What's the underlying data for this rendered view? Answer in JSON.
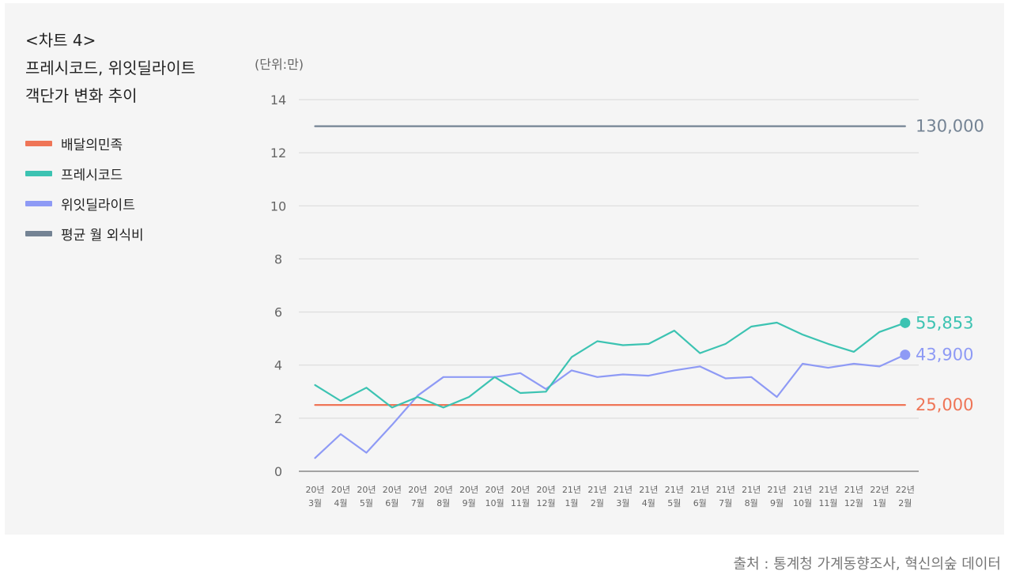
{
  "title_lines": [
    "<차트 4>",
    "프레시코드, 위잇딜라이트",
    "객단가 변화 추이"
  ],
  "unit_label": "(단위:만)",
  "source": "출처 : 통계청 가계동향조사, 혁신의숲 데이터",
  "colors": {
    "baemin": "#ef7557",
    "freshcode": "#3cc3b2",
    "weeat": "#8e9af5",
    "avg": "#748394",
    "grid": "#d8d8d8",
    "axis": "#888888"
  },
  "chart_data": {
    "type": "line",
    "ylim": [
      0,
      14
    ],
    "yticks": [
      0,
      2,
      4,
      6,
      8,
      10,
      12,
      14
    ],
    "grid": true,
    "legend_position": "left",
    "categories": [
      [
        "20년",
        "3월"
      ],
      [
        "20년",
        "4월"
      ],
      [
        "20년",
        "5월"
      ],
      [
        "20년",
        "6월"
      ],
      [
        "20년",
        "7월"
      ],
      [
        "20년",
        "8월"
      ],
      [
        "20년",
        "9월"
      ],
      [
        "20년",
        "10월"
      ],
      [
        "20년",
        "11월"
      ],
      [
        "20년",
        "12월"
      ],
      [
        "21년",
        "1월"
      ],
      [
        "21년",
        "2월"
      ],
      [
        "21년",
        "3월"
      ],
      [
        "21년",
        "4월"
      ],
      [
        "21년",
        "5월"
      ],
      [
        "21년",
        "6월"
      ],
      [
        "21년",
        "7월"
      ],
      [
        "21년",
        "8월"
      ],
      [
        "21년",
        "9월"
      ],
      [
        "21년",
        "10월"
      ],
      [
        "21년",
        "11월"
      ],
      [
        "21년",
        "12월"
      ],
      [
        "22년",
        "1월"
      ],
      [
        "22년",
        "2월"
      ]
    ],
    "series": [
      {
        "name": "배달의민족",
        "color_key": "baemin",
        "values": [
          2.5,
          2.5,
          2.5,
          2.5,
          2.5,
          2.5,
          2.5,
          2.5,
          2.5,
          2.5,
          2.5,
          2.5,
          2.5,
          2.5,
          2.5,
          2.5,
          2.5,
          2.5,
          2.5,
          2.5,
          2.5,
          2.5,
          2.5,
          2.5
        ],
        "end_label": "25,000",
        "end_marker": false
      },
      {
        "name": "프레시코드",
        "color_key": "freshcode",
        "values": [
          3.25,
          2.65,
          3.15,
          2.4,
          2.8,
          2.4,
          2.8,
          3.55,
          2.95,
          3.0,
          4.3,
          4.9,
          4.75,
          4.8,
          5.3,
          4.45,
          4.8,
          5.45,
          5.6,
          5.15,
          4.8,
          4.5,
          5.25,
          5.59
        ],
        "end_label": "55,853",
        "end_marker": true
      },
      {
        "name": "위잇딜라이트",
        "color_key": "weeat",
        "values": [
          0.5,
          1.4,
          0.7,
          1.75,
          2.85,
          3.55,
          3.55,
          3.55,
          3.7,
          3.1,
          3.8,
          3.55,
          3.65,
          3.6,
          3.8,
          3.95,
          3.5,
          3.55,
          2.8,
          4.05,
          3.9,
          4.05,
          3.95,
          4.39
        ],
        "end_label": "43,900",
        "end_marker": true
      },
      {
        "name": "평균 월 외식비",
        "color_key": "avg",
        "values": [
          13,
          13,
          13,
          13,
          13,
          13,
          13,
          13,
          13,
          13,
          13,
          13,
          13,
          13,
          13,
          13,
          13,
          13,
          13,
          13,
          13,
          13,
          13,
          13
        ],
        "end_label": "130,000",
        "end_marker": false
      }
    ]
  }
}
